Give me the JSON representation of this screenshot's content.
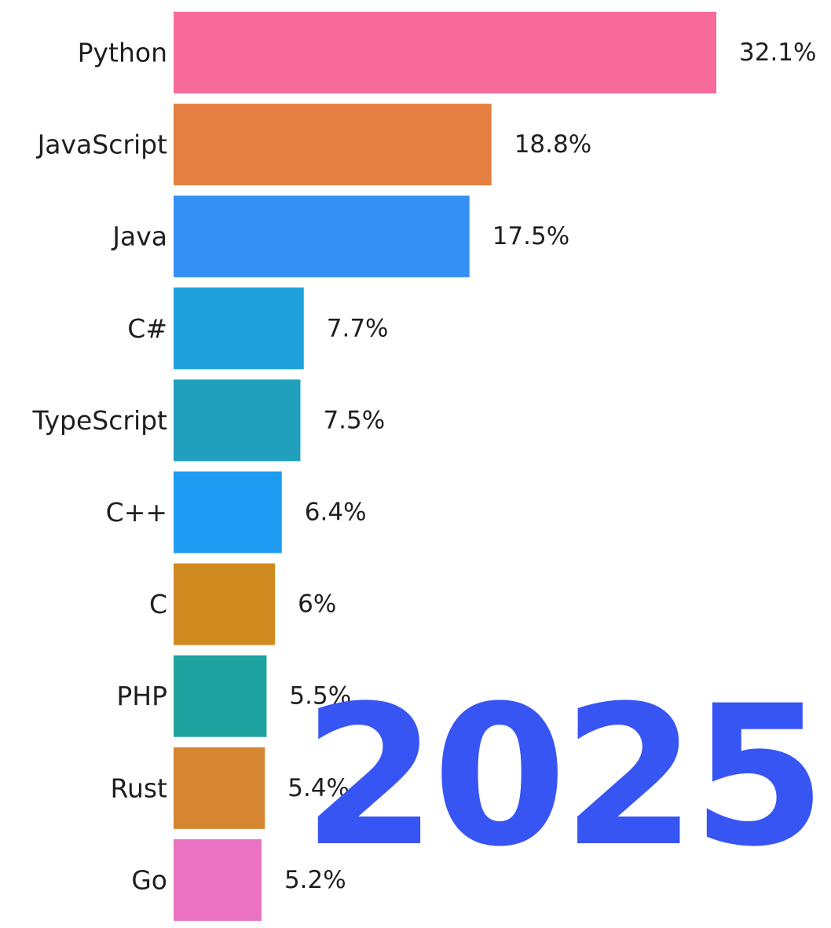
{
  "chart_data": {
    "type": "bar",
    "orientation": "horizontal",
    "categories": [
      "Python",
      "JavaScript",
      "Java",
      "C#",
      "TypeScript",
      "C++",
      "C",
      "PHP",
      "Rust",
      "Go"
    ],
    "values": [
      32.1,
      18.8,
      17.5,
      7.7,
      7.5,
      6.4,
      6,
      5.5,
      5.4,
      5.2
    ],
    "value_labels": [
      "32.1%",
      "18.8%",
      "17.5%",
      "7.7%",
      "7.5%",
      "6.4%",
      "6%",
      "5.5%",
      "5.4%",
      "5.2%"
    ],
    "colors": [
      "#f76a9a",
      "#e47f41",
      "#3590f6",
      "#1ea0dc",
      "#20a0bc",
      "#1e9bf3",
      "#d08a20",
      "#1fa3a0",
      "#d68630",
      "#e973c2"
    ],
    "year": "2025",
    "year_color": "#3755f2",
    "xlim": [
      0,
      32.1
    ],
    "grid": false,
    "legend": "none"
  }
}
